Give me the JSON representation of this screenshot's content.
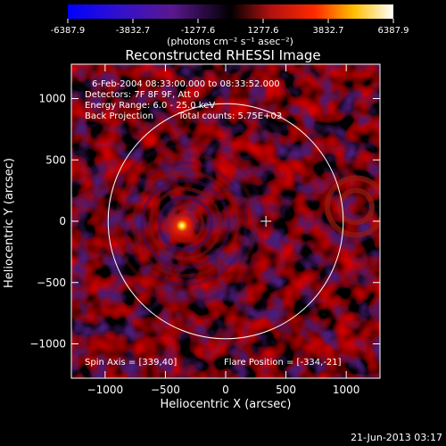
{
  "colorbar": {
    "tick_labels": [
      "-6387.9",
      "-3832.7",
      "-1277.6",
      "1277.6",
      "3832.7",
      "6387.9"
    ],
    "range": [
      -6387.9,
      6387.9
    ],
    "unit_label": "(photons cm⁻² s⁻¹ asec⁻²)"
  },
  "chart_data": {
    "type": "heatmap",
    "title": "Reconstructed RHESSI Image",
    "xlabel": "Heliocentric X (arcsec)",
    "ylabel": "Heliocentric Y (arcsec)",
    "xlim": [
      -1280,
      1280
    ],
    "ylim": [
      -1280,
      1280
    ],
    "x_ticks": [
      -1000,
      -500,
      0,
      500,
      1000
    ],
    "y_ticks": [
      -1000,
      -500,
      0,
      500,
      1000
    ],
    "x_tick_labels": [
      "−1000",
      "−500",
      "0",
      "500",
      "1000"
    ],
    "y_tick_labels": [
      "−1000",
      "−500",
      "0",
      "500",
      "1000"
    ],
    "solar_limb_radius": 975,
    "limb_center": [
      0,
      0
    ],
    "crosshair": [
      334,
      0
    ],
    "source": {
      "x": -334,
      "y": -21
    },
    "annotations": {
      "line1": "6-Feb-2004 08:33:00.000 to 08:33:52.000",
      "line2": "Detectors: 7F 8F 9F, Att 0",
      "line3": "Energy Range: 6.0 - 25.0 keV",
      "line4a": "Back Projection",
      "line4b": "Total counts: 5.75E+03",
      "spin_axis": "Spin Axis = [339,40]",
      "flare_position": "Flare Position = [-334,-21]"
    }
  },
  "footer": {
    "timestamp": "21-Jun-2013 03:17"
  }
}
